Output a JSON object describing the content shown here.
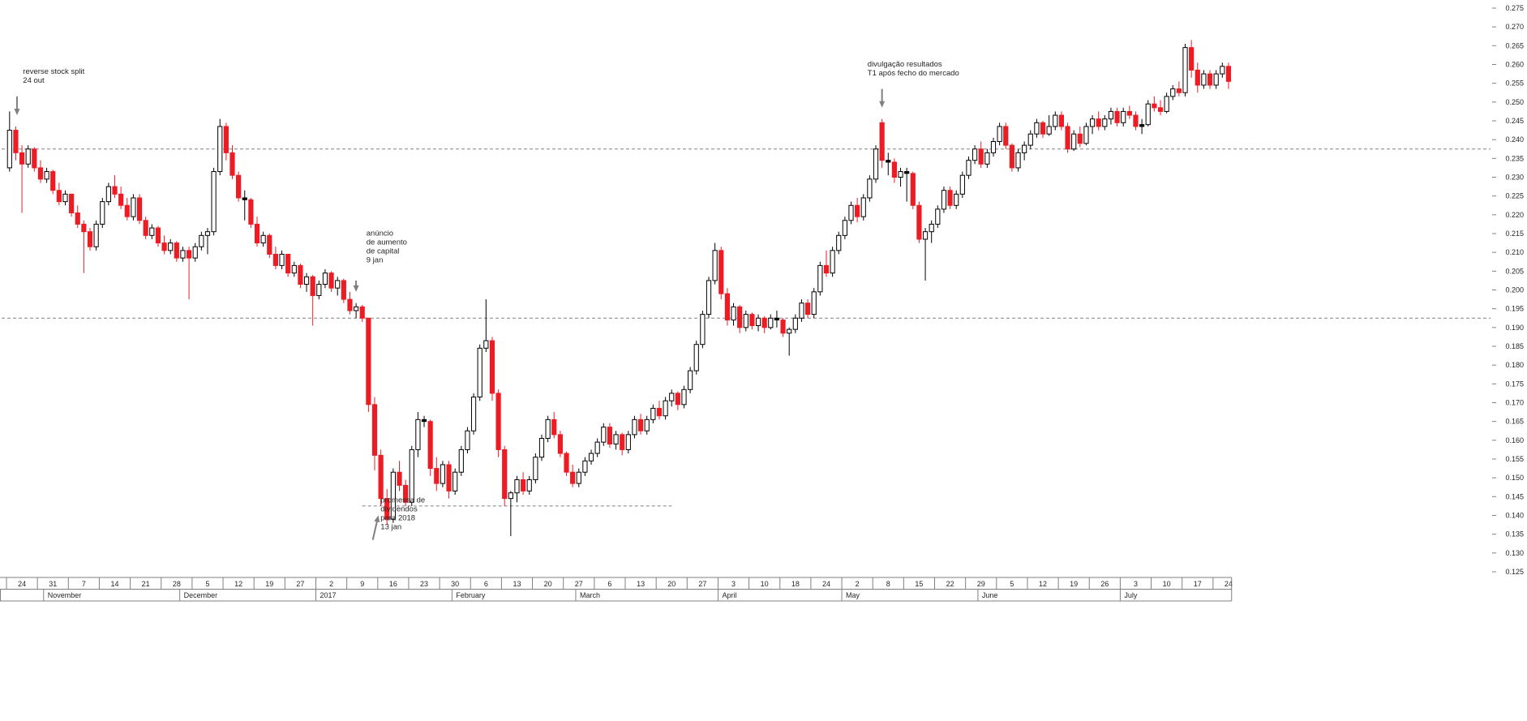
{
  "chart_data": {
    "type": "candlestick",
    "title": "",
    "y_axis": {
      "min": 0.125,
      "max": 0.275,
      "tick_step": 0.005,
      "side": "right",
      "decimals": 3
    },
    "x_axis": {
      "days_per_week": 5,
      "week_tick_labels": [
        "24",
        "31",
        "7",
        "14",
        "21",
        "28",
        "5",
        "12",
        "19",
        "27",
        "2",
        "9",
        "16",
        "23",
        "30",
        "6",
        "13",
        "20",
        "27",
        "6",
        "13",
        "20",
        "27",
        "3",
        "10",
        "18",
        "24",
        "2",
        "8",
        "15",
        "22",
        "29",
        "5",
        "12",
        "19",
        "26",
        "3",
        "10",
        "17",
        "24"
      ],
      "months": [
        {
          "label": "November",
          "candle_index": 6
        },
        {
          "label": "December",
          "candle_index": 28
        },
        {
          "label": "2017",
          "candle_index": 50
        },
        {
          "label": "February",
          "candle_index": 72
        },
        {
          "label": "March",
          "candle_index": 92
        },
        {
          "label": "April",
          "candle_index": 115
        },
        {
          "label": "May",
          "candle_index": 135
        },
        {
          "label": "June",
          "candle_index": 157
        },
        {
          "label": "July",
          "candle_index": 180
        }
      ]
    },
    "colors": {
      "up_body": "#ffffff",
      "down_body": "#ed1c24",
      "outline": "#000000",
      "wick_up": "#000000",
      "black_body": "#000000",
      "dashed_reference": "#808080",
      "arrow": "#808080",
      "axis_text": "#262626",
      "annotation_text": "#262626",
      "background": "#ffffff"
    },
    "black_body_threshold": 0.0008,
    "reference_lines": [
      {
        "price": 0.2375,
        "full_width": true,
        "style": "dashed"
      },
      {
        "price": 0.1925,
        "full_width": true,
        "style": "dashed"
      },
      {
        "price": 0.1425,
        "full_width": false,
        "from_index": 57,
        "to_index": 107,
        "style": "dashed"
      }
    ],
    "annotations": [
      {
        "text_lines": [
          "reverse stock split",
          "24 out"
        ],
        "text_index": 2.5,
        "text_price": 0.2575,
        "arrow": {
          "from_index": 1.2,
          "from_price": 0.2515,
          "to_index": 1.2,
          "to_price": 0.2465
        }
      },
      {
        "text_lines": [
          "anúncio",
          "de aumento",
          "de capital",
          "9 jan"
        ],
        "text_index": 58,
        "text_price": 0.2145,
        "arrow": {
          "from_index": 56,
          "from_price": 0.2025,
          "to_index": 56,
          "to_price": 0.1995
        }
      },
      {
        "text_lines": [
          "promessa de",
          "dividendos",
          "para 2018",
          "13 jan"
        ],
        "text_index": 60.3,
        "text_price": 0.1435,
        "arrow": {
          "from_index": 58.7,
          "from_price": 0.1335,
          "to_index": 59.6,
          "to_price": 0.14
        }
      },
      {
        "text_lines": [
          "divulgação resultados",
          "T1 após fecho do mercado"
        ],
        "text_index": 139,
        "text_price": 0.2595,
        "arrow": {
          "from_index": 141,
          "from_price": 0.2535,
          "to_index": 141,
          "to_price": 0.2485
        }
      }
    ],
    "candles": [
      [
        0.2325,
        0.2475,
        0.2315,
        0.2425
      ],
      [
        0.2425,
        0.2435,
        0.2345,
        0.2365
      ],
      [
        0.2365,
        0.2385,
        0.2205,
        0.2335
      ],
      [
        0.2335,
        0.2385,
        0.2325,
        0.2375
      ],
      [
        0.2375,
        0.238,
        0.2315,
        0.2325
      ],
      [
        0.2325,
        0.2345,
        0.2285,
        0.2295
      ],
      [
        0.2295,
        0.2325,
        0.2285,
        0.2315
      ],
      [
        0.2315,
        0.232,
        0.2255,
        0.2265
      ],
      [
        0.2265,
        0.2285,
        0.2225,
        0.2235
      ],
      [
        0.2235,
        0.2265,
        0.2225,
        0.2255
      ],
      [
        0.2255,
        0.2255,
        0.2195,
        0.2205
      ],
      [
        0.2205,
        0.2225,
        0.2165,
        0.2175
      ],
      [
        0.2175,
        0.2185,
        0.2045,
        0.2155
      ],
      [
        0.2155,
        0.2165,
        0.2105,
        0.2115
      ],
      [
        0.2115,
        0.2185,
        0.2105,
        0.2175
      ],
      [
        0.2175,
        0.2245,
        0.2165,
        0.2235
      ],
      [
        0.2235,
        0.2285,
        0.2225,
        0.2275
      ],
      [
        0.2275,
        0.2305,
        0.2245,
        0.2255
      ],
      [
        0.2255,
        0.2275,
        0.2215,
        0.2225
      ],
      [
        0.2225,
        0.2245,
        0.2185,
        0.2195
      ],
      [
        0.2195,
        0.2255,
        0.2185,
        0.2245
      ],
      [
        0.2245,
        0.2255,
        0.2175,
        0.2185
      ],
      [
        0.2185,
        0.2195,
        0.2135,
        0.2145
      ],
      [
        0.2145,
        0.2175,
        0.2135,
        0.2165
      ],
      [
        0.2165,
        0.217,
        0.2115,
        0.2125
      ],
      [
        0.2125,
        0.2145,
        0.2095,
        0.2105
      ],
      [
        0.2105,
        0.2135,
        0.2095,
        0.2125
      ],
      [
        0.2125,
        0.213,
        0.2075,
        0.2085
      ],
      [
        0.2085,
        0.2115,
        0.2075,
        0.2105
      ],
      [
        0.2105,
        0.2115,
        0.1975,
        0.2085
      ],
      [
        0.2085,
        0.2125,
        0.2075,
        0.2115
      ],
      [
        0.2115,
        0.2155,
        0.2105,
        0.2145
      ],
      [
        0.2145,
        0.2165,
        0.2095,
        0.2155
      ],
      [
        0.2155,
        0.2325,
        0.2145,
        0.2315
      ],
      [
        0.2315,
        0.2455,
        0.2305,
        0.2435
      ],
      [
        0.2435,
        0.2445,
        0.2345,
        0.2365
      ],
      [
        0.2365,
        0.2385,
        0.2295,
        0.2305
      ],
      [
        0.2305,
        0.2315,
        0.2235,
        0.2245
      ],
      [
        0.2245,
        0.2265,
        0.2185,
        0.224
      ],
      [
        0.224,
        0.2245,
        0.2165,
        0.2175
      ],
      [
        0.2175,
        0.2195,
        0.2115,
        0.2125
      ],
      [
        0.2125,
        0.2155,
        0.2115,
        0.2145
      ],
      [
        0.2145,
        0.215,
        0.2085,
        0.2095
      ],
      [
        0.2095,
        0.2115,
        0.2055,
        0.2065
      ],
      [
        0.2065,
        0.2105,
        0.2055,
        0.2095
      ],
      [
        0.2095,
        0.2095,
        0.2035,
        0.2045
      ],
      [
        0.2045,
        0.2075,
        0.2035,
        0.2065
      ],
      [
        0.2065,
        0.207,
        0.2005,
        0.2015
      ],
      [
        0.2015,
        0.2045,
        0.1995,
        0.2035
      ],
      [
        0.2035,
        0.204,
        0.1905,
        0.1985
      ],
      [
        0.1985,
        0.2025,
        0.1975,
        0.2015
      ],
      [
        0.2015,
        0.2055,
        0.2005,
        0.2045
      ],
      [
        0.2045,
        0.205,
        0.1995,
        0.2005
      ],
      [
        0.2005,
        0.2035,
        0.1985,
        0.2025
      ],
      [
        0.2025,
        0.203,
        0.1965,
        0.1975
      ],
      [
        0.1975,
        0.1995,
        0.1935,
        0.1945
      ],
      [
        0.1945,
        0.1965,
        0.1925,
        0.1955
      ],
      [
        0.1955,
        0.196,
        0.1915,
        0.1925
      ],
      [
        0.1925,
        0.1925,
        0.1675,
        0.1695
      ],
      [
        0.1695,
        0.1715,
        0.152,
        0.156
      ],
      [
        0.156,
        0.1575,
        0.1425,
        0.1445
      ],
      [
        0.1445,
        0.147,
        0.1375,
        0.139
      ],
      [
        0.139,
        0.1525,
        0.138,
        0.1515
      ],
      [
        0.1515,
        0.1545,
        0.1465,
        0.148
      ],
      [
        0.148,
        0.1495,
        0.1425,
        0.1435
      ],
      [
        0.1435,
        0.1585,
        0.1425,
        0.1575
      ],
      [
        0.1575,
        0.1675,
        0.1555,
        0.1655
      ],
      [
        0.1655,
        0.1665,
        0.1635,
        0.165
      ],
      [
        0.165,
        0.1655,
        0.1505,
        0.1525
      ],
      [
        0.1525,
        0.1555,
        0.1465,
        0.1485
      ],
      [
        0.1485,
        0.1545,
        0.1475,
        0.1535
      ],
      [
        0.1535,
        0.1545,
        0.1445,
        0.1465
      ],
      [
        0.1465,
        0.1525,
        0.1455,
        0.1515
      ],
      [
        0.1515,
        0.1585,
        0.1505,
        0.1575
      ],
      [
        0.1575,
        0.1635,
        0.1565,
        0.1625
      ],
      [
        0.1625,
        0.1725,
        0.1615,
        0.1715
      ],
      [
        0.1715,
        0.1855,
        0.1705,
        0.1845
      ],
      [
        0.1845,
        0.1975,
        0.1835,
        0.1865
      ],
      [
        0.1865,
        0.1875,
        0.1705,
        0.1725
      ],
      [
        0.1725,
        0.1735,
        0.1555,
        0.1575
      ],
      [
        0.1575,
        0.1585,
        0.1425,
        0.1445
      ],
      [
        0.1445,
        0.1465,
        0.1345,
        0.146
      ],
      [
        0.146,
        0.1505,
        0.1435,
        0.1495
      ],
      [
        0.1495,
        0.1515,
        0.1455,
        0.1465
      ],
      [
        0.1465,
        0.1505,
        0.1455,
        0.1495
      ],
      [
        0.1495,
        0.1565,
        0.1485,
        0.1555
      ],
      [
        0.1555,
        0.1615,
        0.1545,
        0.1605
      ],
      [
        0.1605,
        0.1665,
        0.1595,
        0.1655
      ],
      [
        0.1655,
        0.1675,
        0.1605,
        0.1615
      ],
      [
        0.1615,
        0.1625,
        0.1555,
        0.1565
      ],
      [
        0.1565,
        0.157,
        0.1505,
        0.1515
      ],
      [
        0.1515,
        0.1535,
        0.1475,
        0.1485
      ],
      [
        0.1485,
        0.1525,
        0.1475,
        0.1515
      ],
      [
        0.1515,
        0.1555,
        0.1505,
        0.1545
      ],
      [
        0.1545,
        0.1575,
        0.1535,
        0.1565
      ],
      [
        0.1565,
        0.1605,
        0.1555,
        0.1595
      ],
      [
        0.1595,
        0.1645,
        0.1585,
        0.1635
      ],
      [
        0.1635,
        0.1645,
        0.158,
        0.159
      ],
      [
        0.159,
        0.1625,
        0.1575,
        0.1615
      ],
      [
        0.1615,
        0.162,
        0.156,
        0.1575
      ],
      [
        0.1575,
        0.1625,
        0.1565,
        0.1615
      ],
      [
        0.1615,
        0.1665,
        0.1605,
        0.1655
      ],
      [
        0.1655,
        0.167,
        0.1615,
        0.1625
      ],
      [
        0.1625,
        0.1665,
        0.1615,
        0.1655
      ],
      [
        0.1655,
        0.1695,
        0.1645,
        0.1685
      ],
      [
        0.1685,
        0.1705,
        0.1655,
        0.1665
      ],
      [
        0.1665,
        0.1715,
        0.1655,
        0.1705
      ],
      [
        0.1705,
        0.1735,
        0.169,
        0.1725
      ],
      [
        0.1725,
        0.173,
        0.168,
        0.1695
      ],
      [
        0.1695,
        0.1745,
        0.1685,
        0.1735
      ],
      [
        0.1735,
        0.1795,
        0.1725,
        0.1785
      ],
      [
        0.1785,
        0.1865,
        0.1775,
        0.1855
      ],
      [
        0.1855,
        0.1945,
        0.1845,
        0.1935
      ],
      [
        0.1935,
        0.2035,
        0.1925,
        0.2025
      ],
      [
        0.2025,
        0.2125,
        0.2015,
        0.2105
      ],
      [
        0.2105,
        0.2115,
        0.1975,
        0.199
      ],
      [
        0.199,
        0.2005,
        0.1905,
        0.192
      ],
      [
        0.192,
        0.1965,
        0.1905,
        0.1955
      ],
      [
        0.1955,
        0.196,
        0.1885,
        0.19
      ],
      [
        0.19,
        0.1945,
        0.189,
        0.1935
      ],
      [
        0.1935,
        0.194,
        0.1895,
        0.1905
      ],
      [
        0.1905,
        0.1935,
        0.189,
        0.1925
      ],
      [
        0.1925,
        0.193,
        0.1885,
        0.19
      ],
      [
        0.19,
        0.1935,
        0.1895,
        0.1925
      ],
      [
        0.1925,
        0.1945,
        0.19,
        0.192
      ],
      [
        0.192,
        0.1925,
        0.1875,
        0.1885
      ],
      [
        0.1885,
        0.19,
        0.1825,
        0.1895
      ],
      [
        0.1895,
        0.1935,
        0.1885,
        0.1925
      ],
      [
        0.1925,
        0.1975,
        0.1915,
        0.1965
      ],
      [
        0.1965,
        0.1975,
        0.1925,
        0.1935
      ],
      [
        0.1935,
        0.2005,
        0.1925,
        0.1995
      ],
      [
        0.1995,
        0.2075,
        0.1985,
        0.2065
      ],
      [
        0.2065,
        0.2105,
        0.2035,
        0.2045
      ],
      [
        0.2045,
        0.2115,
        0.2035,
        0.2105
      ],
      [
        0.2105,
        0.2155,
        0.2095,
        0.2145
      ],
      [
        0.2145,
        0.2195,
        0.2135,
        0.2185
      ],
      [
        0.2185,
        0.2235,
        0.2175,
        0.2225
      ],
      [
        0.2225,
        0.2245,
        0.218,
        0.2195
      ],
      [
        0.2195,
        0.2255,
        0.2185,
        0.2245
      ],
      [
        0.2245,
        0.2305,
        0.2235,
        0.2295
      ],
      [
        0.2295,
        0.2385,
        0.2285,
        0.2375
      ],
      [
        0.2445,
        0.2455,
        0.2325,
        0.2345
      ],
      [
        0.2345,
        0.2365,
        0.2305,
        0.234
      ],
      [
        0.234,
        0.235,
        0.2285,
        0.23
      ],
      [
        0.23,
        0.2325,
        0.2275,
        0.2315
      ],
      [
        0.2315,
        0.2325,
        0.2235,
        0.231
      ],
      [
        0.231,
        0.2315,
        0.2215,
        0.2225
      ],
      [
        0.2225,
        0.2235,
        0.2125,
        0.2135
      ],
      [
        0.2135,
        0.2165,
        0.2025,
        0.2155
      ],
      [
        0.2155,
        0.2185,
        0.2125,
        0.2175
      ],
      [
        0.2175,
        0.2225,
        0.2165,
        0.2215
      ],
      [
        0.2215,
        0.2275,
        0.2205,
        0.2265
      ],
      [
        0.2265,
        0.2275,
        0.2215,
        0.2225
      ],
      [
        0.2225,
        0.2265,
        0.2215,
        0.2255
      ],
      [
        0.2255,
        0.2315,
        0.2245,
        0.2305
      ],
      [
        0.2305,
        0.2355,
        0.2295,
        0.2345
      ],
      [
        0.2345,
        0.2385,
        0.2335,
        0.2375
      ],
      [
        0.2375,
        0.2395,
        0.2325,
        0.2335
      ],
      [
        0.2335,
        0.2375,
        0.2325,
        0.2365
      ],
      [
        0.2365,
        0.2405,
        0.2355,
        0.2395
      ],
      [
        0.2395,
        0.2445,
        0.2385,
        0.2435
      ],
      [
        0.2435,
        0.2445,
        0.2375,
        0.2385
      ],
      [
        0.2385,
        0.239,
        0.2315,
        0.2325
      ],
      [
        0.2325,
        0.2375,
        0.2315,
        0.2365
      ],
      [
        0.2365,
        0.2395,
        0.2345,
        0.2385
      ],
      [
        0.2385,
        0.2425,
        0.2375,
        0.2415
      ],
      [
        0.2415,
        0.2455,
        0.2405,
        0.2445
      ],
      [
        0.2445,
        0.245,
        0.2405,
        0.2415
      ],
      [
        0.2415,
        0.2465,
        0.241,
        0.2435
      ],
      [
        0.2435,
        0.2475,
        0.2425,
        0.2465
      ],
      [
        0.2465,
        0.2475,
        0.2425,
        0.2435
      ],
      [
        0.2435,
        0.2445,
        0.2365,
        0.2375
      ],
      [
        0.2375,
        0.2425,
        0.237,
        0.2415
      ],
      [
        0.2415,
        0.2435,
        0.238,
        0.239
      ],
      [
        0.239,
        0.2445,
        0.2385,
        0.2435
      ],
      [
        0.2435,
        0.2465,
        0.2415,
        0.2455
      ],
      [
        0.2455,
        0.2475,
        0.2425,
        0.2435
      ],
      [
        0.2435,
        0.2465,
        0.2425,
        0.2455
      ],
      [
        0.2455,
        0.2485,
        0.244,
        0.2475
      ],
      [
        0.2475,
        0.2485,
        0.2435,
        0.2445
      ],
      [
        0.2445,
        0.2485,
        0.2435,
        0.2475
      ],
      [
        0.2475,
        0.249,
        0.2455,
        0.2465
      ],
      [
        0.2465,
        0.2475,
        0.2425,
        0.2435
      ],
      [
        0.2435,
        0.2455,
        0.2415,
        0.244
      ],
      [
        0.244,
        0.2505,
        0.2435,
        0.2495
      ],
      [
        0.2495,
        0.2515,
        0.2475,
        0.2485
      ],
      [
        0.2485,
        0.2505,
        0.2465,
        0.2475
      ],
      [
        0.2475,
        0.2525,
        0.247,
        0.2515
      ],
      [
        0.2515,
        0.2545,
        0.2505,
        0.2535
      ],
      [
        0.2535,
        0.2555,
        0.2515,
        0.2525
      ],
      [
        0.2525,
        0.2655,
        0.2515,
        0.2645
      ],
      [
        0.2645,
        0.2665,
        0.2565,
        0.2585
      ],
      [
        0.2585,
        0.2605,
        0.2525,
        0.2545
      ],
      [
        0.2545,
        0.2585,
        0.2535,
        0.2575
      ],
      [
        0.2575,
        0.2585,
        0.2535,
        0.2545
      ],
      [
        0.2545,
        0.2585,
        0.2535,
        0.2575
      ],
      [
        0.2575,
        0.2605,
        0.2565,
        0.2595
      ],
      [
        0.2595,
        0.2605,
        0.2535,
        0.2555
      ]
    ]
  }
}
